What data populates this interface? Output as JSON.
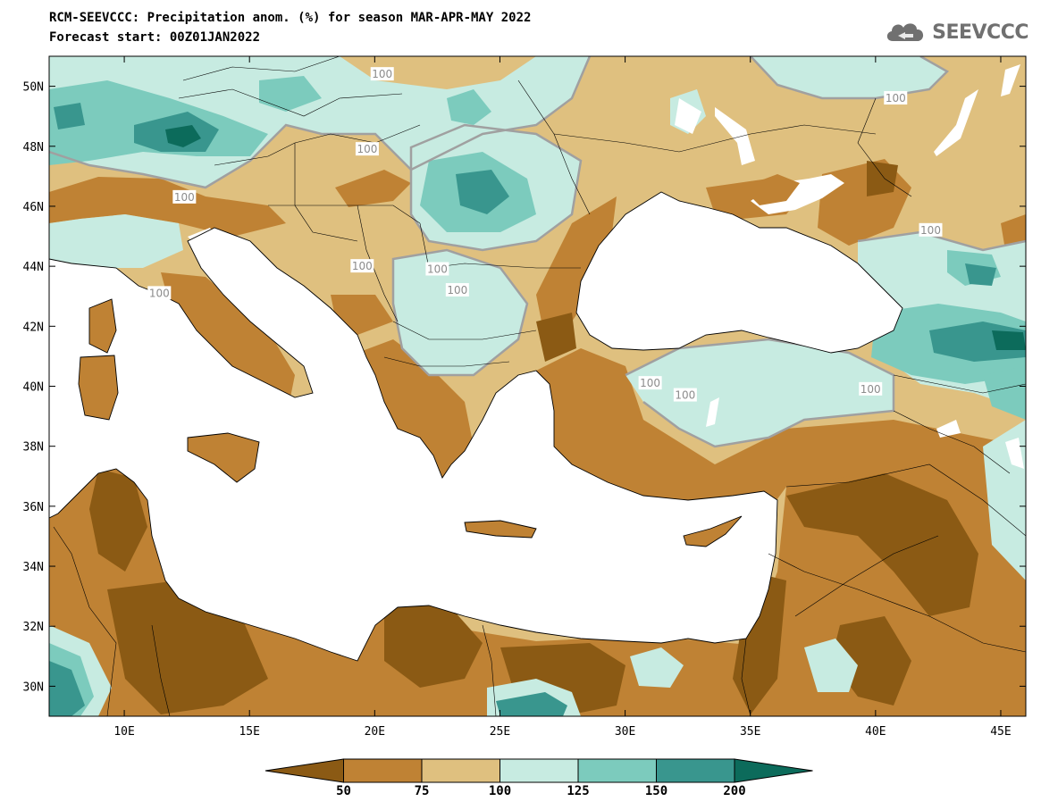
{
  "header": {
    "title": "RCM-SEEVCCC: Precipitation anom. (%) for season MAR-APR-MAY 2022",
    "subtitle": "Forecast start: 00Z01JAN2022",
    "logo_text": "SEEVCCC"
  },
  "map": {
    "lon_range": [
      7,
      46
    ],
    "lat_range": [
      29,
      51
    ],
    "lon_ticks": [
      {
        "value": 10,
        "label": "10E"
      },
      {
        "value": 15,
        "label": "15E"
      },
      {
        "value": 20,
        "label": "20E"
      },
      {
        "value": 25,
        "label": "25E"
      },
      {
        "value": 30,
        "label": "30E"
      },
      {
        "value": 35,
        "label": "35E"
      },
      {
        "value": 40,
        "label": "40E"
      },
      {
        "value": 45,
        "label": "45E"
      }
    ],
    "lat_ticks": [
      {
        "value": 30,
        "label": "30N"
      },
      {
        "value": 32,
        "label": "32N"
      },
      {
        "value": 34,
        "label": "34N"
      },
      {
        "value": 36,
        "label": "36N"
      },
      {
        "value": 38,
        "label": "38N"
      },
      {
        "value": 40,
        "label": "40N"
      },
      {
        "value": 42,
        "label": "42N"
      },
      {
        "value": 44,
        "label": "44N"
      },
      {
        "value": 46,
        "label": "46N"
      },
      {
        "value": 48,
        "label": "48N"
      },
      {
        "value": 50,
        "label": "50N"
      }
    ],
    "contour_labels": [
      {
        "text": "100",
        "lon": 20.3,
        "lat": 50.4
      },
      {
        "text": "100",
        "lon": 19.7,
        "lat": 47.9
      },
      {
        "text": "100",
        "lon": 12.4,
        "lat": 46.3
      },
      {
        "text": "100",
        "lon": 11.4,
        "lat": 43.1
      },
      {
        "text": "100",
        "lon": 19.5,
        "lat": 44.0
      },
      {
        "text": "100",
        "lon": 22.5,
        "lat": 43.9
      },
      {
        "text": "100",
        "lon": 23.3,
        "lat": 43.2
      },
      {
        "text": "100",
        "lon": 32.4,
        "lat": 39.7
      },
      {
        "text": "100",
        "lon": 31.0,
        "lat": 40.1
      },
      {
        "text": "100",
        "lon": 39.8,
        "lat": 39.9
      },
      {
        "text": "100",
        "lon": 42.2,
        "lat": 45.2
      },
      {
        "text": "100",
        "lon": 40.8,
        "lat": 49.6
      }
    ]
  },
  "colorbar": {
    "levels": [
      "50",
      "75",
      "100",
      "125",
      "150",
      "200"
    ],
    "colors": [
      "#8b5a14",
      "#bf8234",
      "#dfc07f",
      "#c7ebe1",
      "#7ccbbd",
      "#39968e",
      "#0c6b5b"
    ]
  },
  "palette": {
    "land_base": "#dfc07f",
    "very_dry": "#8b5a14",
    "dry": "#bf8234",
    "wet": "#c7ebe1",
    "wetter": "#7ccbbd",
    "very_wet": "#39968e",
    "wettest": "#0c6b5b",
    "sea": "#ffffff",
    "contour": "#a0a0a0"
  }
}
